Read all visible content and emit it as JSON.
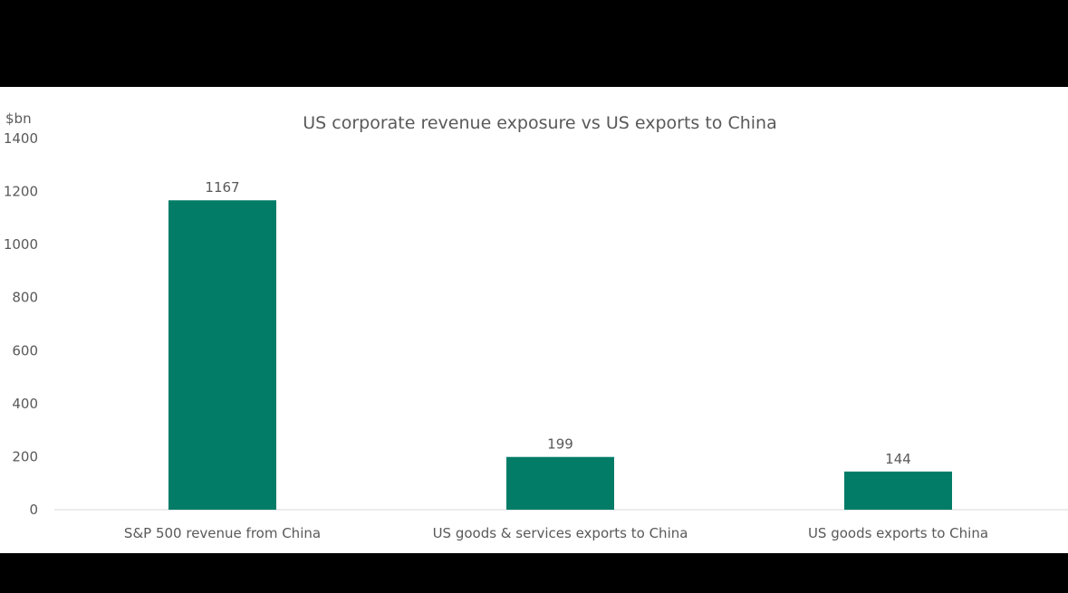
{
  "colors": {
    "bar": "#027c67",
    "axis_line": "#d9d9d9",
    "text": "#595959",
    "panel_bg": "#ffffff",
    "frame_bg": "#000000"
  },
  "chart_data": {
    "type": "bar",
    "title": "US corporate revenue exposure vs US exports to China",
    "ylabel": "$bn",
    "xlabel": "",
    "categories": [
      "S&P 500 revenue from China",
      "US goods & services exports to China",
      "US goods exports to China"
    ],
    "values": [
      1167,
      199,
      144
    ],
    "data_labels": [
      "1167",
      "199",
      "144"
    ],
    "ylim": [
      0,
      1400
    ],
    "yticks": [
      0,
      200,
      400,
      600,
      800,
      1000,
      1200,
      1400
    ],
    "ytick_labels": [
      "0",
      "200",
      "400",
      "600",
      "800",
      "1000",
      "1200",
      "1400"
    ],
    "grid": false,
    "legend": "none"
  }
}
